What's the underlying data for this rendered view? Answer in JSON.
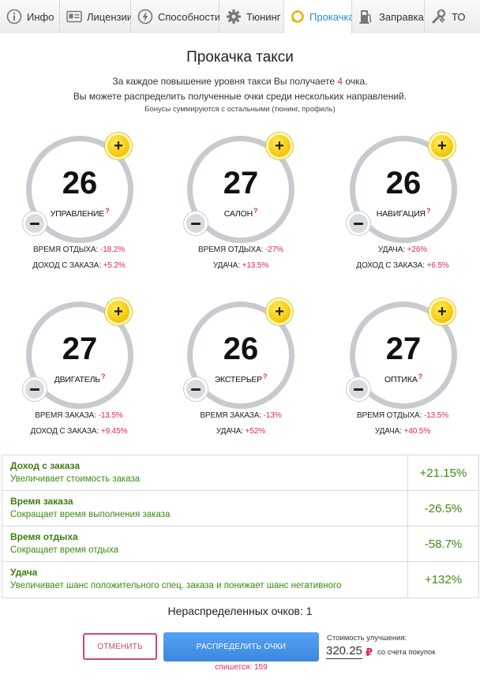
{
  "tabs": [
    {
      "label": "Инфо",
      "icon": "info-icon",
      "active": false
    },
    {
      "label": "Лицензии",
      "icon": "license-card-icon",
      "active": false
    },
    {
      "label": "Способности",
      "icon": "lightning-icon",
      "active": false
    },
    {
      "label": "Тюнинг",
      "icon": "gear-icon",
      "active": false
    },
    {
      "label": "Прокачка",
      "icon": "upgrade-ring-icon",
      "active": true
    },
    {
      "label": "Заправка",
      "icon": "fuel-pump-icon",
      "active": false
    },
    {
      "label": "ТО",
      "icon": "wrench-icon",
      "active": false
    }
  ],
  "header": {
    "title": "Прокачка такси",
    "line1_before": "За каждое повышение уровня такси Вы получаете",
    "line1_points": "4",
    "line1_after": "очка.",
    "line2": "Вы можете распределить полученные очки среди нескольких направлений.",
    "line3": "Бонусы суммируются с остальными (тюнинг, профиль)"
  },
  "gauges": [
    {
      "value": "26",
      "label": "УПРАВЛЕНИЕ",
      "stats": [
        {
          "name": "ВРЕМЯ ОТДЫХА:",
          "value": "-18.2%"
        },
        {
          "name": "ДОХОД С ЗАКАЗА:",
          "value": "+5.2%"
        }
      ]
    },
    {
      "value": "27",
      "label": "САЛОН",
      "stats": [
        {
          "name": "ВРЕМЯ ОТДЫХА:",
          "value": "-27%"
        },
        {
          "name": "УДАЧА:",
          "value": "+13.5%"
        }
      ]
    },
    {
      "value": "26",
      "label": "НАВИГАЦИЯ",
      "stats": [
        {
          "name": "УДАЧА:",
          "value": "+26%"
        },
        {
          "name": "ДОХОД С ЗАКАЗА:",
          "value": "+6.5%"
        }
      ]
    },
    {
      "value": "27",
      "label": "ДВИГАТЕЛЬ",
      "stats": [
        {
          "name": "ВРЕМЯ ЗАКАЗА:",
          "value": "-13.5%"
        },
        {
          "name": "ДОХОД С ЗАКАЗА:",
          "value": "+9.45%"
        }
      ]
    },
    {
      "value": "26",
      "label": "ЭКСТЕРЬЕР",
      "stats": [
        {
          "name": "ВРЕМЯ ЗАКАЗА:",
          "value": "-13%"
        },
        {
          "name": "УДАЧА:",
          "value": "+52%"
        }
      ]
    },
    {
      "value": "27",
      "label": "ОПТИКА",
      "stats": [
        {
          "name": "ВРЕМЯ ОТДЫХА:",
          "value": "-13.5%"
        },
        {
          "name": "УДАЧА:",
          "value": "+40.5%"
        }
      ]
    }
  ],
  "gauge_help_mark": "?",
  "gauge_plus_symbol": "+",
  "effects": [
    {
      "name": "Доход с заказа",
      "desc": "Увеличивает стоимость заказа",
      "value": "+21.15%"
    },
    {
      "name": "Время заказа",
      "desc": "Сокращает время выполнения заказа",
      "value": "-26.5%"
    },
    {
      "name": "Время отдыха",
      "desc": "Сокращает время отдыха",
      "value": "-58.7%"
    },
    {
      "name": "Удача",
      "desc": "Увеличивает шанс положительного спец. заказа и понижает шанс негативного",
      "value": "+132%"
    }
  ],
  "footer": {
    "unassigned": "Нераспределенных очков: 1",
    "cancel_label": "ОТМЕНИТЬ",
    "apply_label": "РАСПРЕДЕЛИТЬ ОЧКИ",
    "charge_text": "спишется: 159",
    "cost_label": "Стоимость улучшения:",
    "cost_value": "320.25",
    "cost_currency": "₽",
    "cost_source": "со счета покупок"
  },
  "colors": {
    "accent_pink": "#e0245e",
    "positive_green": "#3d8a12",
    "active_tab_blue": "#2a8bd6",
    "plus_yellow": "#f7cd14",
    "ring_gray": "#c7cbd0",
    "button_blue": "#3b87e2"
  }
}
